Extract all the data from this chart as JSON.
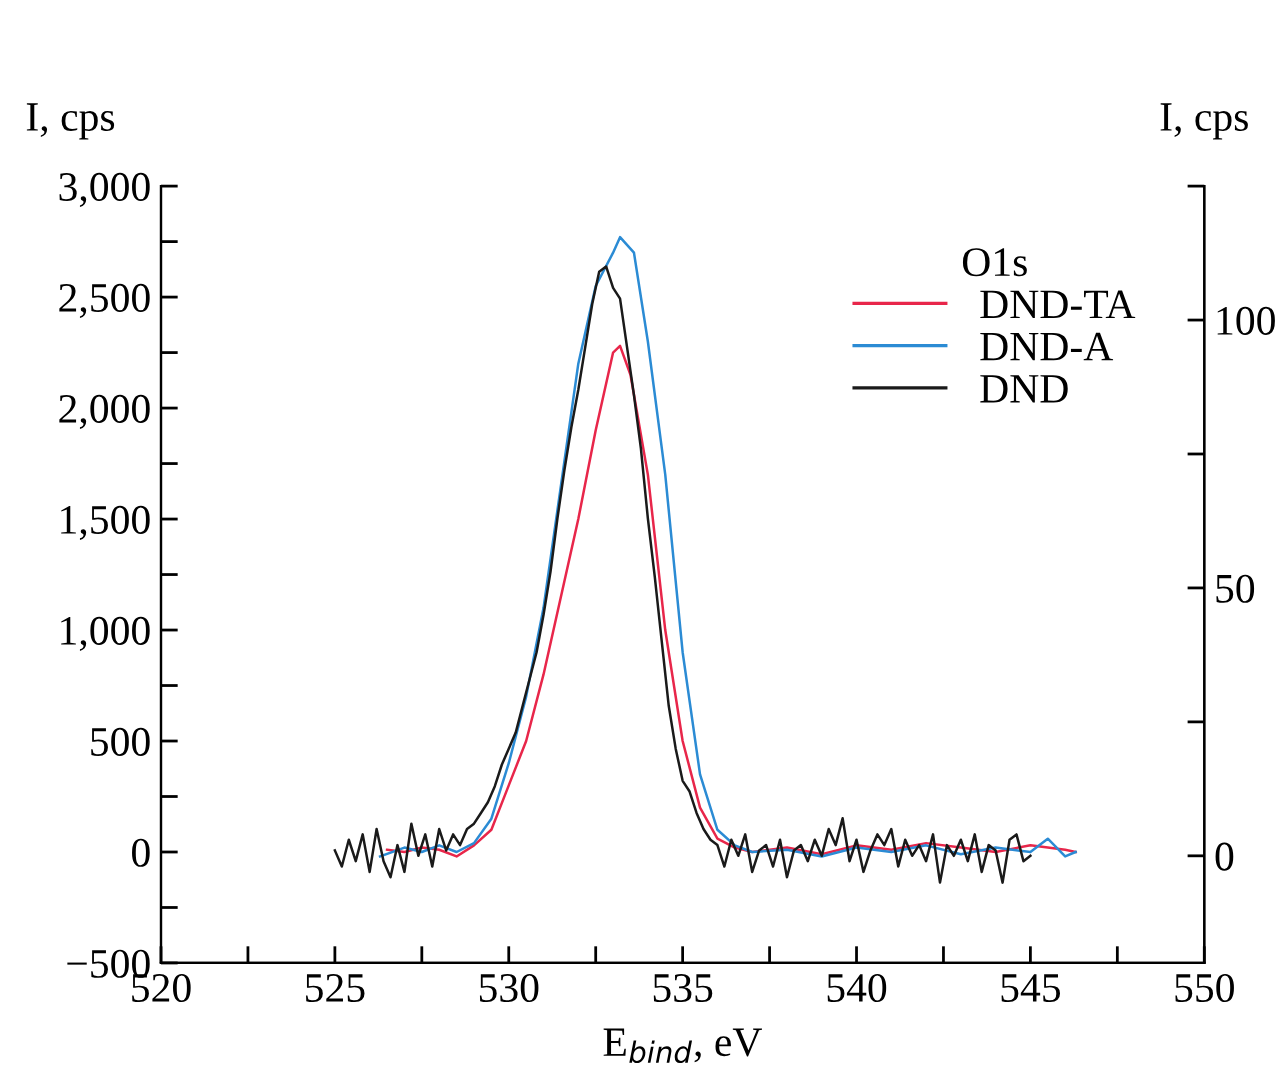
{
  "chart_data": {
    "type": "line",
    "xlabel": "E$_{bind}$, eV",
    "ylabel": "I, cps",
    "y2label": "I, cps",
    "legend_title": "O1s",
    "legend": "top right",
    "grid": false,
    "line_style": "solid",
    "marker": "none",
    "xlim": [
      520,
      550
    ],
    "xticks": [
      520,
      {
        "value": 522.5,
        "label": null
      },
      525,
      {
        "value": 527.5,
        "label": null
      },
      530,
      {
        "value": 532.5,
        "label": null
      },
      535,
      {
        "value": 537.5,
        "label": null
      },
      540,
      {
        "value": 542.5,
        "label": null
      },
      545,
      {
        "value": 547.5,
        "label": null
      },
      550
    ],
    "ylim": [
      -500,
      3000
    ],
    "yticks": [
      {
        "value": -500,
        "label": "−500"
      },
      {
        "value": -250,
        "label": null
      },
      0,
      {
        "value": 250,
        "label": null
      },
      500,
      {
        "value": 750,
        "label": null
      },
      {
        "value": 1000,
        "label": "1,000"
      },
      {
        "value": 1250,
        "label": null
      },
      {
        "value": 1500,
        "label": "1,500"
      },
      {
        "value": 1750,
        "label": null
      },
      {
        "value": 2000,
        "label": "2,000"
      },
      {
        "value": 2250,
        "label": null
      },
      {
        "value": 2500,
        "label": "2,500"
      },
      {
        "value": 2750,
        "label": null
      },
      {
        "value": 3000,
        "label": "3,000"
      }
    ],
    "y2lim": [
      -20,
      125
    ],
    "y2ticks": [
      0,
      {
        "value": 25,
        "label": null
      },
      50,
      {
        "value": 75,
        "label": null
      },
      100,
      {
        "value": 125,
        "label": null
      }
    ],
    "series": [
      {
        "name": "DND-TA",
        "color": "#e8264a",
        "x": [
          526.5,
          527,
          527.5,
          528,
          528.5,
          529,
          529.5,
          530,
          530.5,
          531,
          531.5,
          532,
          532.5,
          533,
          533.2,
          533.5,
          534,
          534.5,
          535,
          535.5,
          536,
          536.5,
          537,
          538,
          539,
          540,
          541,
          542,
          543,
          544,
          545,
          546,
          546.3
        ],
        "values": [
          10,
          0,
          20,
          10,
          -20,
          30,
          100,
          300,
          500,
          800,
          1150,
          1500,
          1900,
          2250,
          2280,
          2150,
          1700,
          1000,
          500,
          200,
          60,
          20,
          0,
          20,
          -10,
          30,
          10,
          40,
          20,
          0,
          30,
          10,
          0
        ]
      },
      {
        "name": "DND-A",
        "color": "#2b8bd4",
        "x": [
          526.3,
          527,
          527.5,
          528,
          528.5,
          529,
          529.5,
          530,
          530.5,
          531,
          531.5,
          532,
          532.5,
          533,
          533.2,
          533.6,
          534,
          534.5,
          535,
          535.5,
          536,
          536.5,
          537,
          538,
          539,
          540,
          541,
          542,
          543,
          544,
          545,
          545.5,
          546,
          546.3
        ],
        "values": [
          -20,
          20,
          0,
          30,
          0,
          40,
          150,
          400,
          700,
          1100,
          1650,
          2200,
          2550,
          2700,
          2770,
          2700,
          2300,
          1700,
          900,
          350,
          100,
          30,
          0,
          10,
          -20,
          20,
          0,
          30,
          -10,
          20,
          0,
          60,
          -20,
          0
        ]
      },
      {
        "name": "DND",
        "color": "#1a1a1a",
        "axis": "y2",
        "x": [
          525.0,
          525.2,
          525.4,
          525.6,
          525.8,
          526.0,
          526.2,
          526.4,
          526.6,
          526.8,
          527.0,
          527.2,
          527.4,
          527.6,
          527.8,
          528.0,
          528.2,
          528.4,
          528.6,
          528.8,
          529.0,
          529.2,
          529.4,
          529.6,
          529.8,
          530.0,
          530.2,
          530.4,
          530.6,
          530.8,
          531.0,
          531.2,
          531.4,
          531.6,
          531.8,
          532.0,
          532.2,
          532.4,
          532.6,
          532.8,
          533.0,
          533.2,
          533.4,
          533.6,
          533.8,
          534.0,
          534.2,
          534.4,
          534.6,
          534.8,
          535.0,
          535.2,
          535.4,
          535.6,
          535.8,
          536.0,
          536.2,
          536.4,
          536.6,
          536.8,
          537.0,
          537.2,
          537.4,
          537.6,
          537.8,
          538.0,
          538.2,
          538.4,
          538.6,
          538.8,
          539.0,
          539.2,
          539.4,
          539.6,
          539.8,
          540.0,
          540.2,
          540.4,
          540.6,
          540.8,
          541.0,
          541.2,
          541.4,
          541.6,
          541.8,
          542.0,
          542.2,
          542.4,
          542.6,
          542.8,
          543.0,
          543.2,
          543.4,
          543.6,
          543.8,
          544.0,
          544.2,
          544.4,
          544.6,
          544.8,
          545.0
        ],
        "values": [
          1,
          -2,
          3,
          -1,
          4,
          -3,
          5,
          -1,
          -4,
          2,
          -3,
          6,
          0,
          4,
          -2,
          5,
          1,
          4,
          2,
          5,
          6,
          8,
          10,
          13,
          17,
          20,
          23,
          28,
          33,
          38,
          45,
          53,
          63,
          72,
          80,
          87,
          95,
          103,
          109,
          110,
          106,
          104,
          95,
          86,
          76,
          63,
          52,
          40,
          28,
          20,
          14,
          12,
          8,
          5,
          3,
          2,
          -2,
          3,
          0,
          4,
          -3,
          1,
          2,
          -2,
          3,
          -4,
          1,
          2,
          -1,
          3,
          0,
          5,
          2,
          7,
          -1,
          3,
          -3,
          1,
          4,
          2,
          5,
          -2,
          3,
          0,
          2,
          -1,
          4,
          -5,
          2,
          0,
          3,
          -1,
          4,
          -3,
          2,
          1,
          -5,
          3,
          4,
          -1,
          0
        ]
      }
    ]
  }
}
